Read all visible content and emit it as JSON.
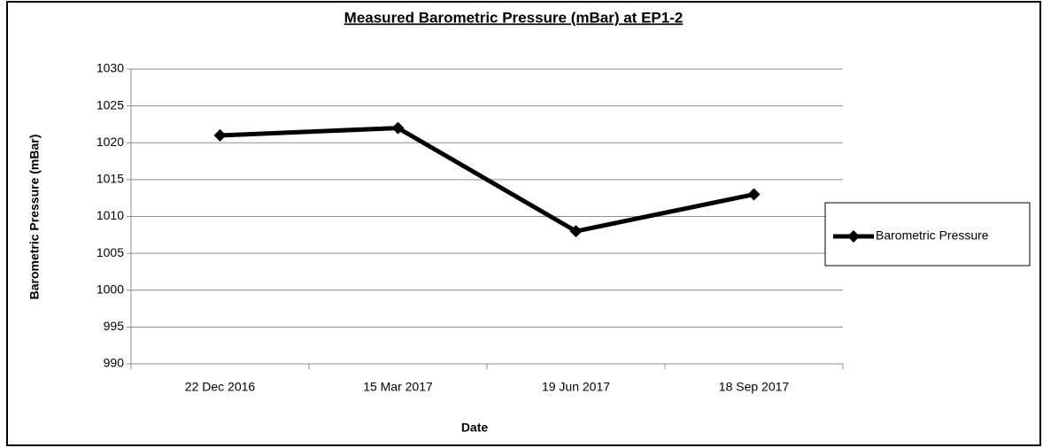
{
  "chart_data": {
    "type": "line",
    "title": "Measured Barometric Pressure (mBar) at EP1-2",
    "x_label": "Date",
    "y_label": "Barometric Pressure (mBar)",
    "categories": [
      "22 Dec 2016",
      "15 Mar 2017",
      "19 Jun 2017",
      "18 Sep 2017"
    ],
    "series": [
      {
        "name": "Barometric Pressure",
        "color": "#000000",
        "values": [
          1021,
          1022,
          1008,
          1013
        ]
      }
    ],
    "ylim": [
      990,
      1030
    ],
    "yticks": [
      990,
      995,
      1000,
      1005,
      1010,
      1015,
      1020,
      1025,
      1030
    ],
    "grid": true,
    "legend": "right"
  }
}
